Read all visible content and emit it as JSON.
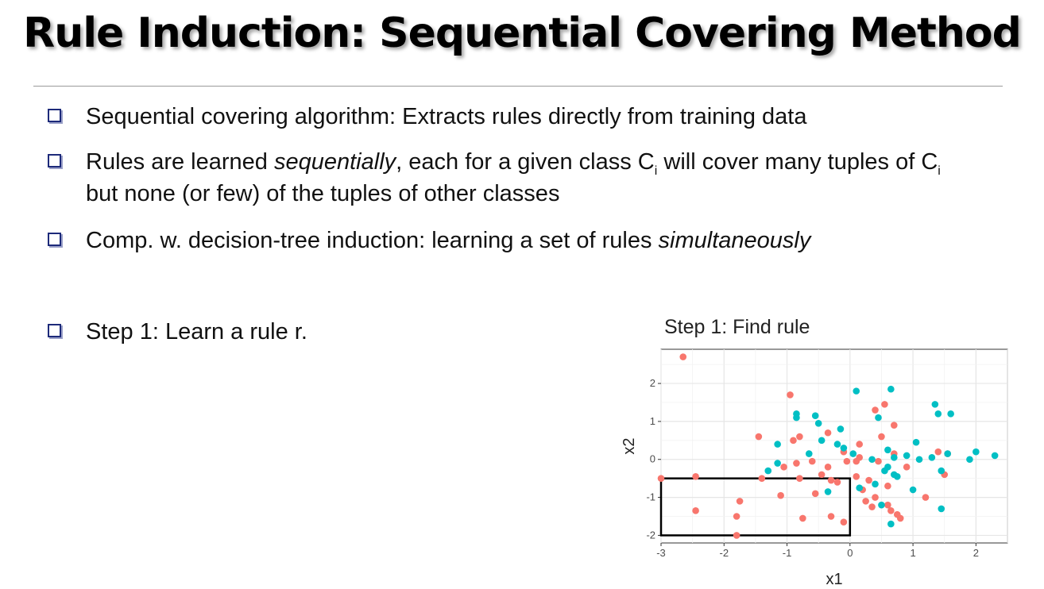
{
  "slide": {
    "title": "Rule Induction: Sequential Covering Method",
    "bullets": [
      {
        "text": "Sequential covering algorithm: Extracts rules directly from training data"
      },
      {
        "pre": "Rules are learned ",
        "italic": "sequentially",
        "post": ", each for a given class C",
        "sub": "i",
        "post2": " will cover many tuples of C",
        "sub2": "i",
        "line2": "but none (or few) of the tuples of other classes"
      },
      {
        "pre": "Comp. w. decision-tree induction: learning a set of rules ",
        "italic": "simultaneously"
      },
      {
        "text": "Step 1: Learn a rule r."
      }
    ],
    "colors": {
      "bullet_box": "#1d2a7a",
      "class_a": "#f8766d",
      "class_b": "#00bfc4"
    }
  },
  "chart_data": {
    "type": "scatter",
    "title": "Step 1: Find rule",
    "xlabel": "x1",
    "ylabel": "x2",
    "xlim": [
      -3.0,
      2.5
    ],
    "ylim": [
      -2.2,
      2.9
    ],
    "xticks": [
      -3,
      -2,
      -1,
      0,
      1,
      2
    ],
    "yticks": [
      -2,
      -1,
      0,
      1,
      2
    ],
    "grid": true,
    "rule_box": {
      "x": [
        -3,
        0
      ],
      "y": [
        -2,
        -0.5
      ]
    },
    "series": [
      {
        "color": "#f8766d",
        "points": [
          [
            -2.65,
            2.7
          ],
          [
            -3.0,
            -0.5
          ],
          [
            -2.45,
            -0.45
          ],
          [
            -2.45,
            -1.35
          ],
          [
            -1.75,
            -1.1
          ],
          [
            -1.8,
            -1.5
          ],
          [
            -1.8,
            -2.0
          ],
          [
            -1.45,
            0.6
          ],
          [
            -1.4,
            -0.5
          ],
          [
            -1.1,
            -0.95
          ],
          [
            -1.05,
            -0.2
          ],
          [
            -0.95,
            1.7
          ],
          [
            -0.9,
            0.5
          ],
          [
            -0.85,
            -0.1
          ],
          [
            -0.8,
            -0.5
          ],
          [
            -0.75,
            -1.55
          ],
          [
            -0.8,
            0.6
          ],
          [
            -0.6,
            -0.05
          ],
          [
            -0.55,
            -0.9
          ],
          [
            -0.45,
            -0.4
          ],
          [
            -0.35,
            0.7
          ],
          [
            -0.35,
            -0.2
          ],
          [
            -0.3,
            -0.55
          ],
          [
            -0.3,
            -1.5
          ],
          [
            -0.2,
            -0.6
          ],
          [
            -0.1,
            -1.65
          ],
          [
            -0.1,
            0.2
          ],
          [
            -0.05,
            -0.05
          ],
          [
            0.1,
            -0.45
          ],
          [
            0.1,
            -0.05
          ],
          [
            0.15,
            0.4
          ],
          [
            0.2,
            -0.8
          ],
          [
            0.25,
            -1.1
          ],
          [
            0.3,
            -0.55
          ],
          [
            0.35,
            -1.25
          ],
          [
            0.4,
            -1.0
          ],
          [
            0.45,
            -0.05
          ],
          [
            0.5,
            0.6
          ],
          [
            0.55,
            1.45
          ],
          [
            0.6,
            -0.7
          ],
          [
            0.6,
            -1.2
          ],
          [
            0.65,
            -1.35
          ],
          [
            0.7,
            0.15
          ],
          [
            0.7,
            0.9
          ],
          [
            0.75,
            -1.45
          ],
          [
            0.8,
            -1.55
          ],
          [
            0.9,
            -0.2
          ],
          [
            1.2,
            -1.0
          ],
          [
            1.4,
            0.2
          ],
          [
            1.5,
            -0.4
          ],
          [
            1.55,
            0.15
          ],
          [
            0.4,
            1.3
          ],
          [
            0.15,
            0.05
          ]
        ]
      },
      {
        "color": "#00bfc4",
        "points": [
          [
            -1.15,
            0.4
          ],
          [
            -1.15,
            -0.1
          ],
          [
            -1.3,
            -0.3
          ],
          [
            -0.85,
            1.1
          ],
          [
            -0.85,
            1.2
          ],
          [
            -0.65,
            0.15
          ],
          [
            -0.55,
            1.15
          ],
          [
            -0.5,
            0.95
          ],
          [
            -0.45,
            0.5
          ],
          [
            -0.35,
            -0.85
          ],
          [
            -0.2,
            0.4
          ],
          [
            -0.15,
            0.8
          ],
          [
            -0.1,
            0.3
          ],
          [
            0.05,
            0.15
          ],
          [
            0.1,
            1.8
          ],
          [
            0.15,
            -0.75
          ],
          [
            0.35,
            0.0
          ],
          [
            0.4,
            -0.65
          ],
          [
            0.45,
            1.1
          ],
          [
            0.5,
            -1.2
          ],
          [
            0.55,
            -0.3
          ],
          [
            0.6,
            0.25
          ],
          [
            0.65,
            1.85
          ],
          [
            0.65,
            -1.7
          ],
          [
            0.7,
            0.05
          ],
          [
            0.7,
            -0.4
          ],
          [
            0.75,
            -0.45
          ],
          [
            0.9,
            0.1
          ],
          [
            1.0,
            -0.8
          ],
          [
            1.05,
            0.45
          ],
          [
            1.1,
            0.0
          ],
          [
            1.3,
            0.05
          ],
          [
            1.35,
            1.45
          ],
          [
            1.4,
            1.2
          ],
          [
            1.45,
            -0.3
          ],
          [
            1.45,
            -1.3
          ],
          [
            1.55,
            0.15
          ],
          [
            1.6,
            1.2
          ],
          [
            1.9,
            0.0
          ],
          [
            2.0,
            0.2
          ],
          [
            2.3,
            0.1
          ],
          [
            0.6,
            -0.2
          ]
        ]
      }
    ]
  }
}
